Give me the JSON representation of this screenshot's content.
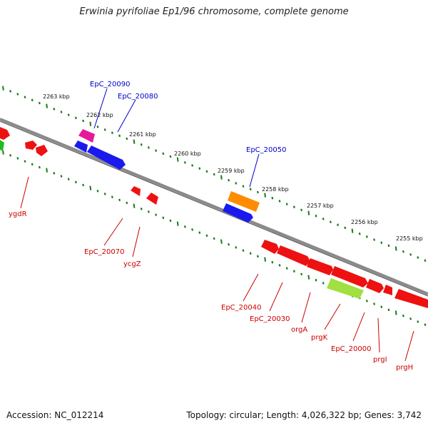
{
  "title": "Erwinia pyrifoliae Ep1/96 chromosome, complete genome",
  "footer": {
    "accession": "Accession: NC_012214",
    "summary": "Topology: circular; Length: 4,026,322 bp; Genes: 3,742"
  },
  "colors": {
    "backbone": "#7f7f7f",
    "ticks": "#1a7a1a",
    "label_top": "#0000cc",
    "label_bottom": "#cc0000",
    "gene_red": "#ee1111",
    "gene_blue": "#1a1aee",
    "gene_orange": "#ff8c00",
    "gene_magenta": "#e6199a",
    "gene_lime": "#a0e040",
    "gene_green": "#22bb22"
  },
  "scale": {
    "unit": "kbp",
    "labels": [
      "2263 kbp",
      "2262 kbp",
      "2261 kbp",
      "2260 kbp",
      "2259 kbp",
      "2258 kbp",
      "2257 kbp",
      "2256 kbp",
      "2255 kbp"
    ]
  },
  "genes_top": [
    {
      "name": "EpC_20090",
      "color": "gene_magenta",
      "label": "EpC_20090"
    },
    {
      "name": "EpC_20080",
      "color": "gene_blue",
      "label": "EpC_20080"
    },
    {
      "name": "EpC_20050",
      "color": "gene_orange",
      "label": "EpC_20050"
    }
  ],
  "genes_bottom_labels": [
    "ygdR",
    "EpC_20070",
    "ycgZ",
    "EpC_20040",
    "EpC_20030",
    "orgA",
    "prgK",
    "EpC_20000",
    "prgI",
    "prgH"
  ]
}
